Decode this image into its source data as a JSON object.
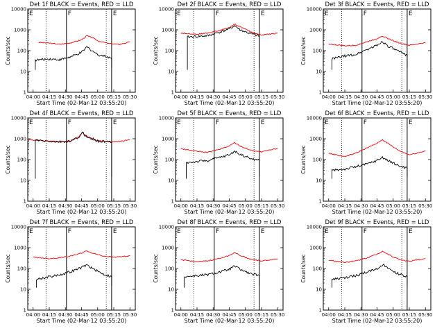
{
  "figure": {
    "xlabel": "Start Time (02-Mar-12 03:55:20)",
    "ylabel": "Counts/sec",
    "x_ticks": [
      "04:00",
      "04:15",
      "04:30",
      "04:45",
      "05:00",
      "05:15",
      "05:30"
    ],
    "y_ticks": [
      "1",
      "10",
      "100",
      "1000",
      "10000"
    ],
    "segment_marks": [
      "E",
      "F",
      "E"
    ],
    "colors": {
      "events": "#000000",
      "lld": "#ff0000",
      "axis": "#000000"
    }
  },
  "chart_data": [
    {
      "type": "line",
      "title": "Det 1f BLACK = Events, RED = LLD",
      "ylim": [
        1,
        10000
      ],
      "yscale": "log",
      "xlim": [
        "03:55",
        "05:35"
      ],
      "grid": false,
      "series": [
        {
          "points": [
            [
              "04:05",
              250
            ],
            [
              "04:15",
              230
            ],
            [
              "04:25",
              200
            ],
            [
              "04:35",
              240
            ],
            [
              "04:45",
              330
            ],
            [
              "04:50",
              520
            ],
            [
              "04:55",
              420
            ],
            [
              "05:00",
              300
            ],
            [
              "05:10",
              220
            ],
            [
              "05:20",
              200
            ],
            [
              "05:30",
              260
            ]
          ]
        },
        {
          "points": [
            [
              "04:02",
              35
            ],
            [
              "04:15",
              40
            ],
            [
              "04:25",
              37
            ],
            [
              "04:35",
              50
            ],
            [
              "04:45",
              80
            ],
            [
              "04:50",
              150
            ],
            [
              "04:55",
              100
            ],
            [
              "05:00",
              65
            ],
            [
              "05:10",
              50
            ],
            [
              "05:13",
              40
            ]
          ]
        }
      ]
    },
    {
      "type": "line",
      "title": "Det 2f BLACK = Events, RED = LLD",
      "ylim": [
        1,
        10000
      ],
      "yscale": "log",
      "xlim": [
        "03:55",
        "05:35"
      ],
      "grid": false,
      "series": [
        {
          "points": [
            [
              "04:00",
              700
            ],
            [
              "04:15",
              620
            ],
            [
              "04:25",
              700
            ],
            [
              "04:35",
              900
            ],
            [
              "04:45",
              1300
            ],
            [
              "04:50",
              1900
            ],
            [
              "04:55",
              1400
            ],
            [
              "05:05",
              800
            ],
            [
              "05:15",
              560
            ],
            [
              "05:30",
              700
            ]
          ]
        },
        {
          "points": [
            [
              "04:06",
              450
            ],
            [
              "04:15",
              480
            ],
            [
              "04:25",
              520
            ],
            [
              "04:35",
              750
            ],
            [
              "04:45",
              1100
            ],
            [
              "04:50",
              1600
            ],
            [
              "04:55",
              1000
            ],
            [
              "05:05",
              650
            ],
            [
              "05:13",
              500
            ]
          ]
        }
      ]
    },
    {
      "type": "line",
      "title": "Det 3f BLACK = Events, RED = LLD",
      "ylim": [
        1,
        10000
      ],
      "yscale": "log",
      "xlim": [
        "03:55",
        "05:35"
      ],
      "grid": false,
      "series": [
        {
          "points": [
            [
              "04:00",
              210
            ],
            [
              "04:15",
              170
            ],
            [
              "04:25",
              180
            ],
            [
              "04:35",
              260
            ],
            [
              "04:45",
              380
            ],
            [
              "04:50",
              520
            ],
            [
              "04:55",
              380
            ],
            [
              "05:05",
              240
            ],
            [
              "05:15",
              180
            ],
            [
              "05:30",
              240
            ]
          ]
        },
        {
          "points": [
            [
              "04:03",
              40
            ],
            [
              "04:15",
              55
            ],
            [
              "04:25",
              65
            ],
            [
              "04:35",
              110
            ],
            [
              "04:45",
              180
            ],
            [
              "04:50",
              280
            ],
            [
              "04:55",
              170
            ],
            [
              "05:05",
              90
            ],
            [
              "05:13",
              60
            ]
          ]
        }
      ]
    },
    {
      "type": "line",
      "title": "Det 4f BLACK = Events, RED = LLD",
      "ylim": [
        1,
        10000
      ],
      "yscale": "log",
      "xlim": [
        "03:55",
        "05:35"
      ],
      "grid": false,
      "series": [
        {
          "points": [
            [
              "03:56",
              900
            ],
            [
              "04:10",
              800
            ],
            [
              "04:25",
              720
            ],
            [
              "04:35",
              780
            ],
            [
              "04:42",
              1200
            ],
            [
              "04:46",
              2000
            ],
            [
              "04:50",
              1300
            ],
            [
              "05:00",
              800
            ],
            [
              "05:15",
              700
            ],
            [
              "05:30",
              900
            ]
          ]
        },
        {
          "points": [
            [
              "04:02",
              850
            ],
            [
              "04:10",
              780
            ],
            [
              "04:25",
              700
            ],
            [
              "04:35",
              760
            ],
            [
              "04:42",
              1150
            ],
            [
              "04:46",
              1900
            ],
            [
              "04:50",
              1250
            ],
            [
              "05:00",
              780
            ],
            [
              "05:13",
              690
            ]
          ]
        }
      ]
    },
    {
      "type": "line",
      "title": "Det 5f BLACK = Events, RED = LLD",
      "ylim": [
        1,
        10000
      ],
      "yscale": "log",
      "xlim": [
        "03:55",
        "05:35"
      ],
      "grid": false,
      "series": [
        {
          "points": [
            [
              "04:00",
              330
            ],
            [
              "04:15",
              250
            ],
            [
              "04:25",
              220
            ],
            [
              "04:35",
              300
            ],
            [
              "04:45",
              450
            ],
            [
              "04:50",
              650
            ],
            [
              "04:55",
              450
            ],
            [
              "05:05",
              280
            ],
            [
              "05:15",
              230
            ],
            [
              "05:30",
              350
            ]
          ]
        },
        {
          "points": [
            [
              "04:05",
              70
            ],
            [
              "04:15",
              80
            ],
            [
              "04:25",
              90
            ],
            [
              "04:35",
              120
            ],
            [
              "04:45",
              170
            ],
            [
              "04:50",
              250
            ],
            [
              "04:55",
              180
            ],
            [
              "05:05",
              110
            ],
            [
              "05:13",
              90
            ]
          ]
        }
      ]
    },
    {
      "type": "line",
      "title": "Det 6f BLACK = Events, RED = LLD",
      "ylim": [
        1,
        10000
      ],
      "yscale": "log",
      "xlim": [
        "03:55",
        "05:35"
      ],
      "grid": false,
      "series": [
        {
          "points": [
            [
              "04:00",
              200
            ],
            [
              "04:15",
              140
            ],
            [
              "04:25",
              200
            ],
            [
              "04:35",
              350
            ],
            [
              "04:45",
              600
            ],
            [
              "04:50",
              900
            ],
            [
              "04:55",
              600
            ],
            [
              "05:05",
              280
            ],
            [
              "05:15",
              170
            ],
            [
              "05:30",
              260
            ]
          ]
        },
        {
          "points": [
            [
              "04:03",
              30
            ],
            [
              "04:15",
              35
            ],
            [
              "04:25",
              45
            ],
            [
              "04:35",
              60
            ],
            [
              "04:45",
              90
            ],
            [
              "04:50",
              130
            ],
            [
              "04:55",
              90
            ],
            [
              "05:05",
              50
            ],
            [
              "05:13",
              40
            ]
          ]
        }
      ]
    },
    {
      "type": "line",
      "title": "Det 7f BLACK = Events, RED = LLD",
      "ylim": [
        1,
        10000
      ],
      "yscale": "log",
      "xlim": [
        "03:55",
        "05:35"
      ],
      "grid": false,
      "series": [
        {
          "points": [
            [
              "04:00",
              350
            ],
            [
              "04:15",
              300
            ],
            [
              "04:25",
              330
            ],
            [
              "04:35",
              400
            ],
            [
              "04:45",
              550
            ],
            [
              "04:50",
              700
            ],
            [
              "04:55",
              550
            ],
            [
              "05:05",
              400
            ],
            [
              "05:15",
              350
            ],
            [
              "05:30",
              400
            ]
          ]
        },
        {
          "points": [
            [
              "04:03",
              30
            ],
            [
              "04:15",
              40
            ],
            [
              "04:25",
              50
            ],
            [
              "04:35",
              70
            ],
            [
              "04:45",
              110
            ],
            [
              "04:50",
              150
            ],
            [
              "04:55",
              100
            ],
            [
              "05:05",
              55
            ],
            [
              "05:13",
              40
            ]
          ]
        }
      ]
    },
    {
      "type": "line",
      "title": "Det 8f BLACK = Events, RED = LLD",
      "ylim": [
        1,
        10000
      ],
      "yscale": "log",
      "xlim": [
        "03:55",
        "05:35"
      ],
      "grid": false,
      "series": [
        {
          "points": [
            [
              "04:00",
              260
            ],
            [
              "04:15",
              210
            ],
            [
              "04:25",
              230
            ],
            [
              "04:35",
              300
            ],
            [
              "04:45",
              420
            ],
            [
              "04:50",
              600
            ],
            [
              "04:55",
              420
            ],
            [
              "05:05",
              280
            ],
            [
              "05:15",
              230
            ],
            [
              "05:30",
              290
            ]
          ]
        },
        {
          "points": [
            [
              "04:03",
              40
            ],
            [
              "04:15",
              45
            ],
            [
              "04:25",
              50
            ],
            [
              "04:35",
              65
            ],
            [
              "04:45",
              90
            ],
            [
              "04:50",
              130
            ],
            [
              "04:55",
              90
            ],
            [
              "05:05",
              55
            ],
            [
              "05:13",
              45
            ]
          ]
        }
      ]
    },
    {
      "type": "line",
      "title": "Det 9f BLACK = Events, RED = LLD",
      "ylim": [
        1,
        10000
      ],
      "yscale": "log",
      "xlim": [
        "03:55",
        "05:35"
      ],
      "grid": false,
      "series": [
        {
          "points": [
            [
              "04:00",
              250
            ],
            [
              "04:15",
              200
            ],
            [
              "04:25",
              230
            ],
            [
              "04:35",
              320
            ],
            [
              "04:45",
              480
            ],
            [
              "04:50",
              700
            ],
            [
              "04:55",
              480
            ],
            [
              "05:05",
              280
            ],
            [
              "05:15",
              220
            ],
            [
              "05:30",
              300
            ]
          ]
        },
        {
          "points": [
            [
              "04:03",
              30
            ],
            [
              "04:15",
              35
            ],
            [
              "04:25",
              45
            ],
            [
              "04:35",
              65
            ],
            [
              "04:45",
              100
            ],
            [
              "04:50",
              150
            ],
            [
              "04:55",
              100
            ],
            [
              "05:05",
              55
            ],
            [
              "05:13",
              40
            ]
          ]
        }
      ]
    }
  ]
}
